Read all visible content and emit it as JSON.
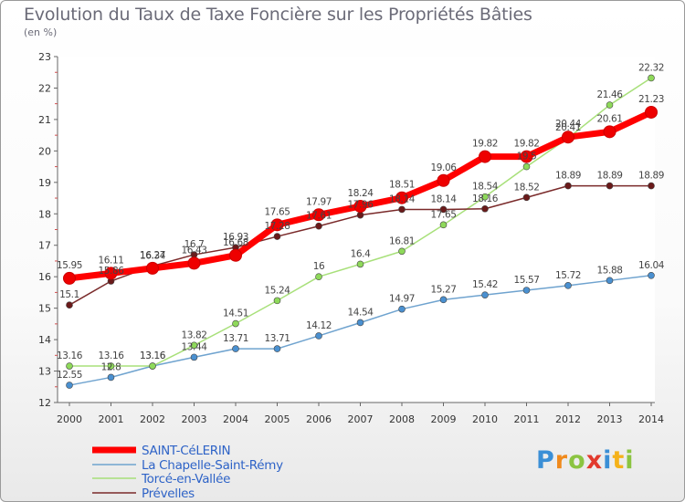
{
  "chart_data": {
    "type": "line",
    "title": "Evolution du Taux de Taxe Foncière sur les Propriétés Bâties",
    "subtitle": "(en %)",
    "x": [
      "2000",
      "2001",
      "2002",
      "2003",
      "2004",
      "2005",
      "2006",
      "2007",
      "2008",
      "2009",
      "2010",
      "2011",
      "2012",
      "2013",
      "2014"
    ],
    "ylim": [
      12,
      23
    ],
    "yticks": [
      12,
      13,
      14,
      15,
      16,
      17,
      18,
      19,
      20,
      21,
      22,
      23
    ],
    "grid": false,
    "legend_position": "bottom-left",
    "series": [
      {
        "name": "SAINT-CéLERIN",
        "color": "#ff0000",
        "marker_color": "#ee0000",
        "values": [
          15.95,
          16.11,
          16.27,
          16.43,
          16.68,
          17.65,
          17.97,
          18.24,
          18.51,
          19.06,
          19.82,
          19.82,
          20.44,
          20.61,
          21.23
        ],
        "labels": [
          "15.95",
          "16.11",
          "16.27",
          "16.43",
          "16.68",
          "17.65",
          "17.97",
          "18.24",
          "18.51",
          "19.06",
          "19.82",
          "19.82",
          "20.44",
          "20.61",
          "21.23"
        ]
      },
      {
        "name": "La Chapelle-Saint-Rémy",
        "color": "#6fa3cf",
        "marker_color": "#4a90d0",
        "values": [
          12.55,
          12.8,
          13.16,
          13.44,
          13.71,
          13.71,
          14.12,
          14.54,
          14.97,
          15.27,
          15.42,
          15.57,
          15.72,
          15.88,
          16.04
        ],
        "labels": [
          "12.55",
          "12.8",
          "13.16",
          "13.44",
          "13.71",
          "13.71",
          "14.12",
          "14.54",
          "14.97",
          "15.27",
          "15.42",
          "15.57",
          "15.72",
          "15.88",
          "16.04"
        ]
      },
      {
        "name": "Torcé-en-Vallée",
        "color": "#a8e07a",
        "marker_color": "#8ed95a",
        "values": [
          13.16,
          13.16,
          13.16,
          13.82,
          14.51,
          15.24,
          16,
          16.4,
          16.81,
          17.65,
          18.54,
          19.5,
          20.41,
          21.46,
          22.32
        ],
        "labels": [
          "13.16",
          "13.16",
          "13.16",
          "13.82",
          "14.51",
          "15.24",
          "16",
          "16.4",
          "16.81",
          "17.65",
          "18.54",
          "19.5",
          "20.41",
          "21.46",
          "22.32"
        ]
      },
      {
        "name": "Prévelles",
        "color": "#7a2a2a",
        "marker_color": "#6a1a1a",
        "values": [
          15.1,
          15.86,
          16.34,
          16.7,
          16.93,
          17.28,
          17.61,
          17.96,
          18.14,
          18.14,
          18.16,
          18.52,
          18.89,
          18.89,
          18.89
        ],
        "labels": [
          "15.1",
          "15.86",
          "16.34",
          "16.7",
          "16.93",
          "17.28",
          "17.61",
          "17.96",
          "18.14",
          "18.14",
          "18.16",
          "18.52",
          "18.89",
          "18.89",
          "18.89"
        ]
      }
    ]
  },
  "logo": {
    "letters": [
      "P",
      "r",
      "o",
      "x",
      "i",
      "t",
      "i"
    ]
  }
}
